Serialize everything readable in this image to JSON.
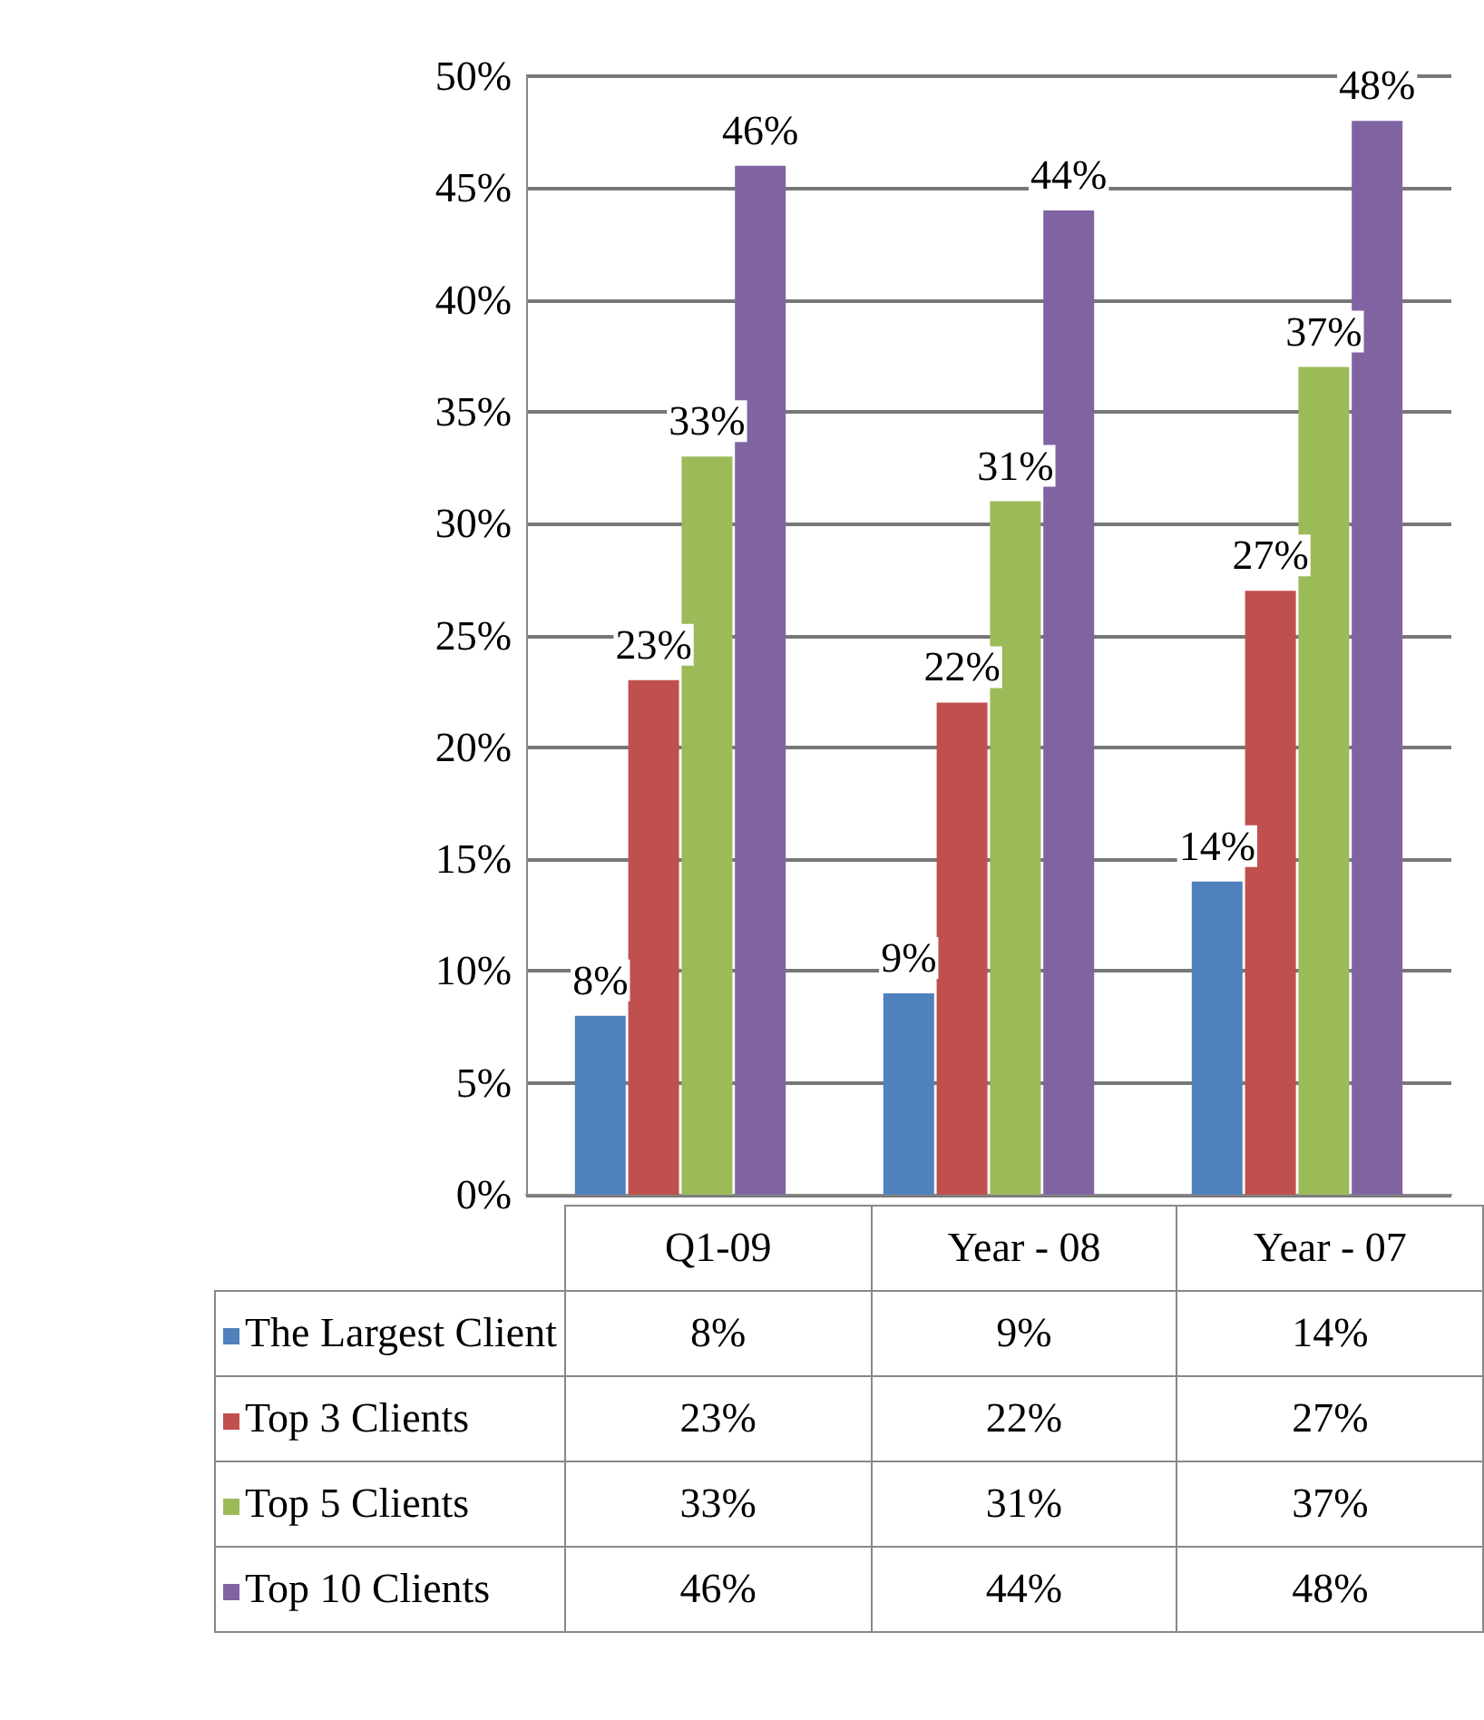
{
  "chart_data": {
    "type": "bar",
    "categories": [
      "Q1-09",
      "Year - 08",
      "Year - 07"
    ],
    "series": [
      {
        "name": "The Largest Client",
        "color": "#4f81bd",
        "values": [
          8,
          9,
          14
        ],
        "value_labels": [
          "8%",
          "9%",
          "14%"
        ]
      },
      {
        "name": "Top 3 Clients",
        "color": "#c0504d",
        "values": [
          23,
          22,
          27
        ],
        "value_labels": [
          "23%",
          "22%",
          "27%"
        ]
      },
      {
        "name": "Top 5 Clients",
        "color": "#9bbb59",
        "values": [
          33,
          31,
          37
        ],
        "value_labels": [
          "33%",
          "31%",
          "37%"
        ]
      },
      {
        "name": "Top 10 Clients",
        "color": "#8064a2",
        "values": [
          46,
          44,
          48
        ],
        "value_labels": [
          "46%",
          "44%",
          "48%"
        ]
      }
    ],
    "ylim": [
      0,
      50
    ],
    "yticks": [
      {
        "value": 0,
        "label": "0%"
      },
      {
        "value": 5,
        "label": "5%"
      },
      {
        "value": 10,
        "label": "10%"
      },
      {
        "value": 15,
        "label": "15%"
      },
      {
        "value": 20,
        "label": "20%"
      },
      {
        "value": 25,
        "label": "25%"
      },
      {
        "value": 30,
        "label": "30%"
      },
      {
        "value": 35,
        "label": "35%"
      },
      {
        "value": 40,
        "label": "40%"
      },
      {
        "value": 45,
        "label": "45%"
      },
      {
        "value": 50,
        "label": "50%"
      }
    ],
    "grid": true,
    "legend": "bottom left"
  }
}
